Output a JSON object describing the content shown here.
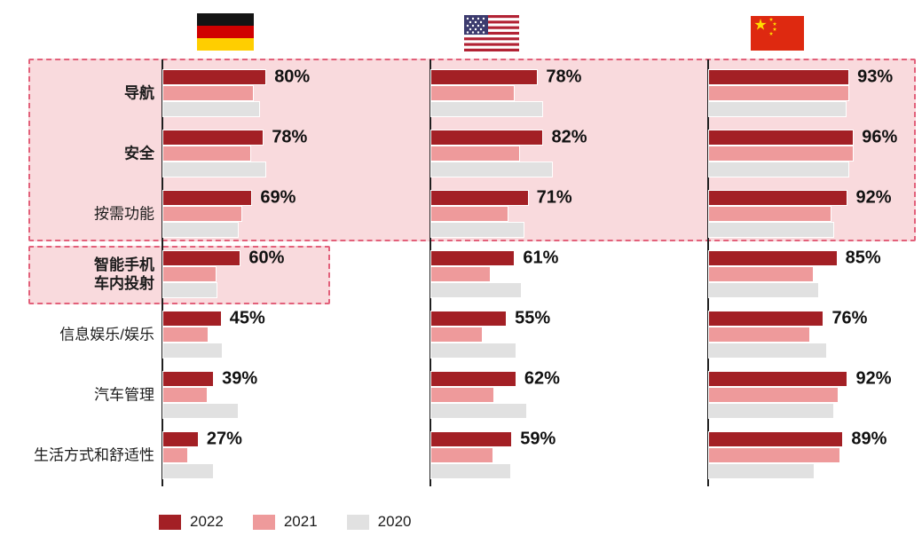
{
  "colors": {
    "bar_2022": "#A32025",
    "bar_2021": "#EE9A9B",
    "bar_2020": "#E1E1E1",
    "highlight_background": "#F9DADD",
    "highlight_border": "#E2607A",
    "axis": "#1f1f1f",
    "value_text": "#111111"
  },
  "legend": {
    "items": [
      {
        "label": "2022",
        "color": "#A32025"
      },
      {
        "label": "2021",
        "color": "#EE9A9B"
      },
      {
        "label": "2020",
        "color": "#E1E1E1"
      }
    ]
  },
  "chart_data": {
    "type": "bar",
    "orientation": "horizontal",
    "value_unit": "percent",
    "xlim": [
      0,
      100
    ],
    "grid": false,
    "legend_position": "bottom",
    "years": [
      "2022",
      "2021",
      "2020"
    ],
    "year_colors": {
      "2022": "#A32025",
      "2021": "#EE9A9B",
      "2020": "#E1E1E1"
    },
    "categories": [
      {
        "label": "导航",
        "bold": true
      },
      {
        "label": "安全",
        "bold": true
      },
      {
        "label": "按需功能",
        "bold": false
      },
      {
        "label": "智能手机\n车内投射",
        "bold": true
      },
      {
        "label": "信息娱乐/娱乐",
        "bold": false
      },
      {
        "label": "汽车管理",
        "bold": false
      },
      {
        "label": "生活方式和舒适性",
        "bold": false
      }
    ],
    "columns": [
      {
        "id": "germany",
        "flag_icon": "germany-flag",
        "groups": [
          {
            "category": "导航",
            "label": "80%",
            "values": [
              80,
              70,
              75
            ]
          },
          {
            "category": "安全",
            "label": "78%",
            "values": [
              78,
              68,
              80
            ]
          },
          {
            "category": "按需功能",
            "label": "69%",
            "values": [
              69,
              61,
              58
            ]
          },
          {
            "category": "智能手机车内投射",
            "label": "60%",
            "values": [
              60,
              41,
              42
            ]
          },
          {
            "category": "信息娱乐/娱乐",
            "label": "45%",
            "values": [
              45,
              35,
              46
            ]
          },
          {
            "category": "汽车管理",
            "label": "39%",
            "values": [
              39,
              34,
              58
            ]
          },
          {
            "category": "生活方式和舒适性",
            "label": "27%",
            "values": [
              27,
              19,
              39
            ]
          }
        ]
      },
      {
        "id": "usa",
        "flag_icon": "usa-flag",
        "groups": [
          {
            "category": "导航",
            "label": "78%",
            "values": [
              78,
              61,
              82
            ]
          },
          {
            "category": "安全",
            "label": "82%",
            "values": [
              82,
              65,
              89
            ]
          },
          {
            "category": "按需功能",
            "label": "71%",
            "values": [
              71,
              56,
              68
            ]
          },
          {
            "category": "智能手机车内投射",
            "label": "61%",
            "values": [
              61,
              43,
              66
            ]
          },
          {
            "category": "信息娱乐/娱乐",
            "label": "55%",
            "values": [
              55,
              37,
              62
            ]
          },
          {
            "category": "汽车管理",
            "label": "62%",
            "values": [
              62,
              46,
              70
            ]
          },
          {
            "category": "生活方式和舒适性",
            "label": "59%",
            "values": [
              59,
              45,
              58
            ]
          }
        ]
      },
      {
        "id": "china",
        "flag_icon": "china-flag",
        "groups": [
          {
            "category": "导航",
            "label": "93%",
            "values": [
              93,
              93,
              91
            ]
          },
          {
            "category": "安全",
            "label": "96%",
            "values": [
              96,
              96,
              93
            ]
          },
          {
            "category": "按需功能",
            "label": "92%",
            "values": [
              92,
              81,
              83
            ]
          },
          {
            "category": "智能手机车内投射",
            "label": "85%",
            "values": [
              85,
              69,
              73
            ]
          },
          {
            "category": "信息娱乐/娱乐",
            "label": "76%",
            "values": [
              76,
              67,
              78
            ]
          },
          {
            "category": "汽车管理",
            "label": "92%",
            "values": [
              92,
              86,
              83
            ]
          },
          {
            "category": "生活方式和舒适性",
            "label": "89%",
            "values": [
              89,
              87,
              70
            ]
          }
        ]
      }
    ],
    "highlights": [
      {
        "name": "top3-categories-all-countries",
        "categories": [
          "导航",
          "安全",
          "按需功能"
        ]
      },
      {
        "name": "smartphone-projection-germany-only",
        "categories": [
          "智能手机车内投射"
        ],
        "column": "germany"
      }
    ],
    "notes": "Only 2022 bars carry printed value labels; 2021/2020 values estimated from bar lengths."
  }
}
